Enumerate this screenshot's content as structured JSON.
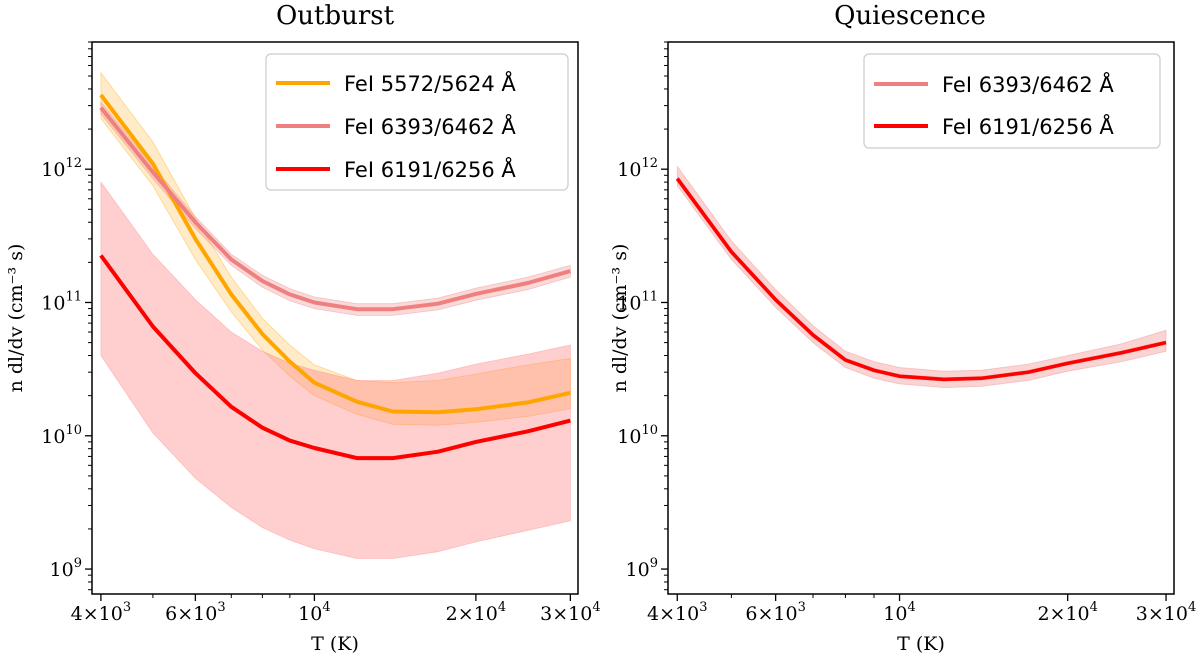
{
  "chart_data": [
    {
      "type": "line",
      "title": "Outburst",
      "xlabel": "T (K)",
      "ylabel": "n dl/dv (cm⁻³ s)",
      "xscale": "log",
      "yscale": "log",
      "xlim": [
        3850,
        31000
      ],
      "ylim": [
        650000000.0,
        9000000000000.0
      ],
      "xticks": [
        {
          "value": 4000,
          "base": "4×10",
          "exp": "3"
        },
        {
          "value": 6000,
          "base": "6×10",
          "exp": "3"
        },
        {
          "value": 10000,
          "base": "10",
          "exp": "4"
        },
        {
          "value": 20000,
          "base": "2×10",
          "exp": "4"
        },
        {
          "value": 30000,
          "base": "3×10",
          "exp": "4"
        }
      ],
      "yticks": [
        {
          "value": 1000000000.0,
          "base": "10",
          "exp": "9"
        },
        {
          "value": 10000000000.0,
          "base": "10",
          "exp": "10"
        },
        {
          "value": 100000000000.0,
          "base": "10",
          "exp": "11"
        },
        {
          "value": 1000000000000.0,
          "base": "10",
          "exp": "12"
        }
      ],
      "legend": {
        "position": "top-right"
      },
      "series": [
        {
          "name": "FeI 5572/5624 Å",
          "color": "#ffa500",
          "band_color": "#ffa500",
          "band_opacity": 0.22,
          "x": [
            4000,
            5000,
            6000,
            7000,
            8000,
            9000,
            10000,
            12000,
            14000,
            17000,
            20000,
            25000,
            30000
          ],
          "y": [
            3600000000000.0,
            1100000000000.0,
            300000000000.0,
            115000000000.0,
            58000000000.0,
            36000000000.0,
            25000000000.0,
            18000000000.0,
            15200000000.0,
            15000000000.0,
            15800000000.0,
            17800000000.0,
            21000000000.0
          ],
          "lower": [
            2400000000000.0,
            750000000000.0,
            210000000000.0,
            85000000000.0,
            44000000000.0,
            28000000000.0,
            20000000000.0,
            14500000000.0,
            12200000000.0,
            12000000000.0,
            12600000000.0,
            14000000000.0,
            16000000000.0
          ],
          "upper": [
            5300000000000.0,
            1600000000000.0,
            430000000000.0,
            155000000000.0,
            76000000000.0,
            48000000000.0,
            34000000000.0,
            26000000000.0,
            25000000000.0,
            26000000000.0,
            29000000000.0,
            34000000000.0,
            38000000000.0
          ]
        },
        {
          "name": "FeI 6393/6462 Å",
          "color": "#f08080",
          "band_color": "#f08080",
          "band_opacity": 0.3,
          "x": [
            4000,
            5000,
            6000,
            7000,
            8000,
            9000,
            10000,
            12000,
            14000,
            17000,
            20000,
            25000,
            30000
          ],
          "y": [
            2900000000000.0,
            950000000000.0,
            400000000000.0,
            210000000000.0,
            145000000000.0,
            115000000000.0,
            100000000000.0,
            89000000000.0,
            89000000000.0,
            98000000000.0,
            116000000000.0,
            140000000000.0,
            172000000000.0
          ],
          "lower": [
            2600000000000.0,
            850000000000.0,
            360000000000.0,
            190000000000.0,
            130000000000.0,
            103000000000.0,
            90000000000.0,
            80000000000.0,
            80000000000.0,
            88000000000.0,
            104000000000.0,
            125000000000.0,
            155000000000.0
          ],
          "upper": [
            3200000000000.0,
            1050000000000.0,
            440000000000.0,
            230000000000.0,
            160000000000.0,
            127000000000.0,
            110000000000.0,
            98000000000.0,
            98000000000.0,
            108000000000.0,
            128000000000.0,
            155000000000.0,
            190000000000.0
          ]
        },
        {
          "name": "FeI 6191/6256 Å",
          "color": "#ff0000",
          "band_color": "#ff7f7f",
          "band_opacity": 0.38,
          "x": [
            4000,
            5000,
            6000,
            7000,
            8000,
            9000,
            10000,
            12000,
            14000,
            17000,
            20000,
            25000,
            30000
          ],
          "y": [
            225000000000.0,
            66000000000.0,
            29500000000.0,
            16500000000.0,
            11500000000.0,
            9200000000.0,
            8100000000.0,
            6800000000.0,
            6800000000.0,
            7600000000.0,
            9000000000.0,
            10800000000.0,
            13000000000.0
          ],
          "lower": [
            40000000000.0,
            10500000000.0,
            4800000000.0,
            2900000000.0,
            2050000000.0,
            1650000000.0,
            1420000000.0,
            1200000000.0,
            1200000000.0,
            1350000000.0,
            1600000000.0,
            1950000000.0,
            2300000000.0
          ],
          "upper": [
            800000000000.0,
            230000000000.0,
            105000000000.0,
            60000000000.0,
            43000000000.0,
            35000000000.0,
            31000000000.0,
            26000000000.0,
            26000000000.0,
            29500000000.0,
            34500000000.0,
            41000000000.0,
            48000000000.0
          ]
        }
      ]
    },
    {
      "type": "line",
      "title": "Quiescence",
      "xlabel": "T (K)",
      "ylabel": "n dl/dv (cm⁻³ s)",
      "xscale": "log",
      "yscale": "log",
      "xlim": [
        3850,
        31000
      ],
      "ylim": [
        650000000.0,
        9000000000000.0
      ],
      "xticks": [
        {
          "value": 4000,
          "base": "4×10",
          "exp": "3"
        },
        {
          "value": 6000,
          "base": "6×10",
          "exp": "3"
        },
        {
          "value": 10000,
          "base": "10",
          "exp": "4"
        },
        {
          "value": 20000,
          "base": "2×10",
          "exp": "4"
        },
        {
          "value": 30000,
          "base": "3×10",
          "exp": "4"
        }
      ],
      "yticks": [
        {
          "value": 1000000000.0,
          "base": "10",
          "exp": "9"
        },
        {
          "value": 10000000000.0,
          "base": "10",
          "exp": "10"
        },
        {
          "value": 100000000000.0,
          "base": "10",
          "exp": "11"
        },
        {
          "value": 1000000000000.0,
          "base": "10",
          "exp": "12"
        }
      ],
      "legend": {
        "position": "top-right"
      },
      "series": [
        {
          "name": "FeI 6393/6462 Å",
          "color": "#f08080",
          "band_color": "#f08080",
          "band_opacity": 0.35,
          "x": [
            4000,
            5000,
            6000,
            7000,
            8000,
            9000,
            10000,
            12000,
            14000,
            17000,
            20000,
            25000,
            30000
          ],
          "y": [
            850000000000.0,
            240000000000.0,
            105000000000.0,
            57000000000.0,
            37000000000.0,
            31000000000.0,
            28000000000.0,
            26500000000.0,
            27000000000.0,
            30000000000.0,
            35000000000.0,
            42000000000.0,
            50000000000.0
          ],
          "lower": [
            750000000000.0,
            210000000000.0,
            92000000000.0,
            50000000000.0,
            32500000000.0,
            27000000000.0,
            24500000000.0,
            23000000000.0,
            23500000000.0,
            26000000000.0,
            30500000000.0,
            36000000000.0,
            43000000000.0
          ],
          "upper": [
            1050000000000.0,
            290000000000.0,
            125000000000.0,
            67000000000.0,
            43000000000.0,
            36000000000.0,
            32500000000.0,
            30500000000.0,
            31000000000.0,
            34500000000.0,
            40000000000.0,
            49000000000.0,
            62000000000.0
          ]
        },
        {
          "name": "FeI 6191/6256 Å",
          "color": "#ff0000",
          "band_color": "#ff7f7f",
          "band_opacity": 0.0,
          "x": [
            4000,
            5000,
            6000,
            7000,
            8000,
            9000,
            10000,
            12000,
            14000,
            17000,
            20000,
            25000,
            30000
          ],
          "y": [
            850000000000.0,
            240000000000.0,
            105000000000.0,
            57000000000.0,
            37000000000.0,
            31000000000.0,
            28000000000.0,
            26500000000.0,
            27000000000.0,
            30000000000.0,
            35000000000.0,
            42000000000.0,
            50000000000.0
          ],
          "lower": [
            850000000000.0,
            240000000000.0,
            105000000000.0,
            57000000000.0,
            37000000000.0,
            31000000000.0,
            28000000000.0,
            26500000000.0,
            27000000000.0,
            30000000000.0,
            35000000000.0,
            42000000000.0,
            50000000000.0
          ],
          "upper": [
            850000000000.0,
            240000000000.0,
            105000000000.0,
            57000000000.0,
            37000000000.0,
            31000000000.0,
            28000000000.0,
            26500000000.0,
            27000000000.0,
            30000000000.0,
            35000000000.0,
            42000000000.0,
            50000000000.0
          ]
        }
      ]
    }
  ]
}
